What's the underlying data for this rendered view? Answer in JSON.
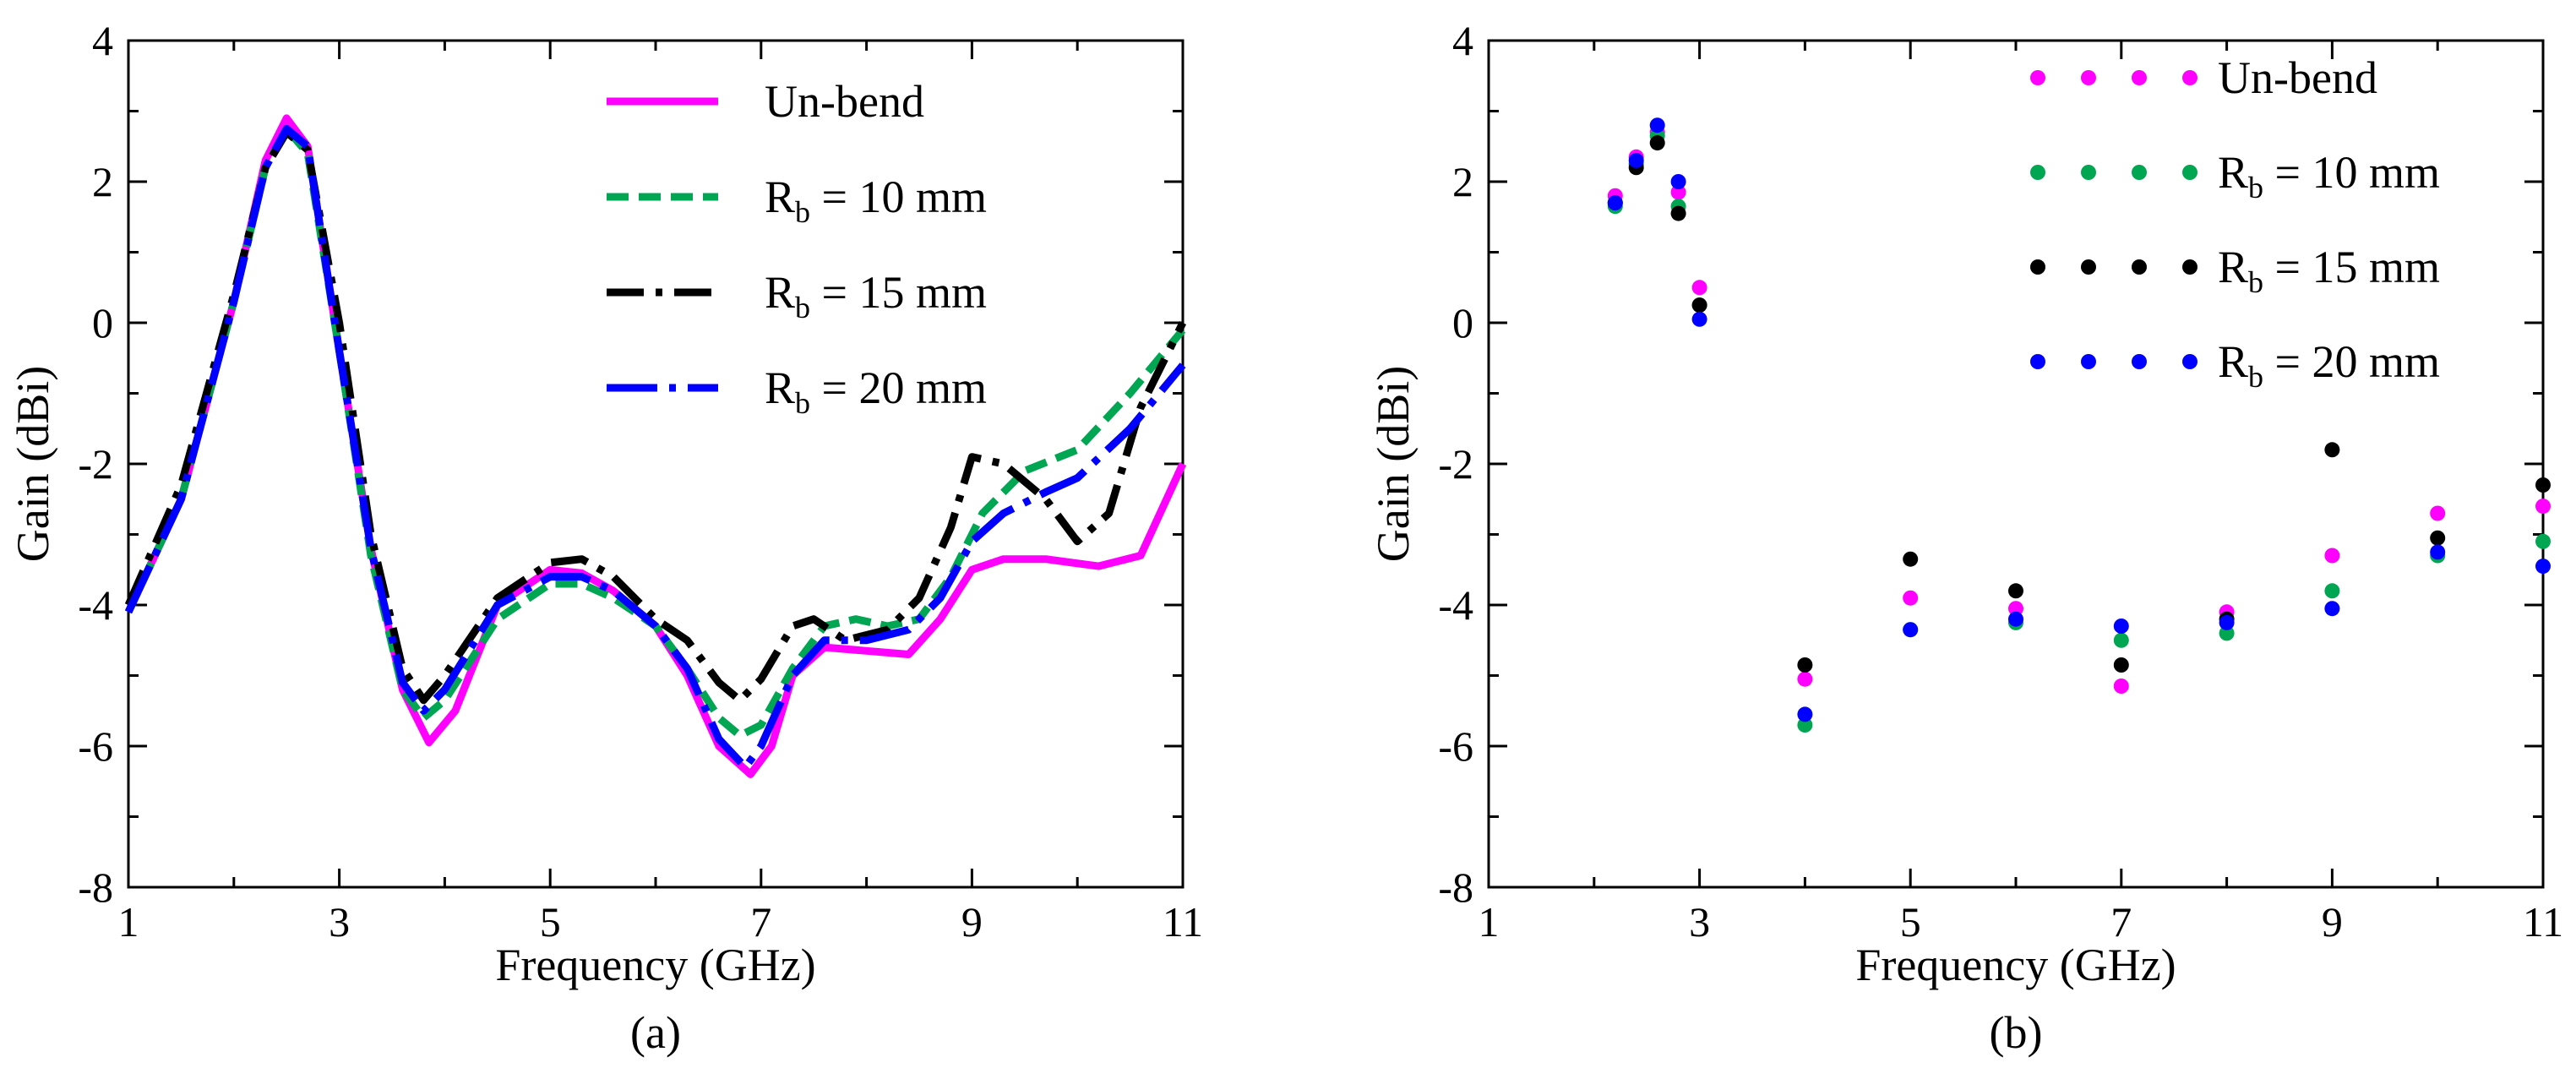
{
  "chart_data": [
    {
      "type": "line",
      "panel_label": "(a)",
      "xlabel": "Frequency (GHz)",
      "ylabel": "Gain (dBi)",
      "xlim": [
        1,
        11
      ],
      "ylim": [
        -8,
        4
      ],
      "xticks": [
        1,
        3,
        5,
        7,
        9,
        11
      ],
      "yticks": [
        4,
        2,
        0,
        -2,
        -4,
        -6,
        -8
      ],
      "yticklabels": [
        "4",
        "2",
        "0",
        "-2",
        "-4",
        "-6",
        "-8"
      ],
      "grid": false,
      "legend_position": "top-right",
      "series": [
        {
          "name": "Un-bend",
          "name_main": "Un-bend",
          "name_sub": "",
          "name_rest": "",
          "color": "#ff00ff",
          "dash": "solid",
          "x": [
            1,
            1.5,
            2,
            2.3,
            2.5,
            2.7,
            3,
            3.3,
            3.6,
            3.85,
            4.1,
            4.5,
            5,
            5.3,
            5.6,
            6,
            6.3,
            6.6,
            6.9,
            7.1,
            7.3,
            7.6,
            8,
            8.4,
            8.7,
            9,
            9.3,
            9.7,
            10.2,
            10.6,
            11
          ],
          "y": [
            -4.1,
            -2.5,
            0.3,
            2.3,
            2.9,
            2.5,
            -0.4,
            -3.2,
            -5.2,
            -5.95,
            -5.5,
            -4.0,
            -3.5,
            -3.55,
            -3.8,
            -4.3,
            -5.0,
            -6.0,
            -6.4,
            -6.0,
            -5.0,
            -4.6,
            -4.65,
            -4.7,
            -4.2,
            -3.5,
            -3.35,
            -3.35,
            -3.45,
            -3.3,
            -2.0
          ]
        },
        {
          "name": "R_b = 10 mm",
          "name_main": "R",
          "name_sub": "b",
          "name_rest": " = 10 mm",
          "color": "#00a651",
          "dash": "short",
          "x": [
            1,
            1.5,
            2,
            2.3,
            2.5,
            2.7,
            3,
            3.3,
            3.6,
            3.8,
            4.0,
            4.5,
            5,
            5.3,
            5.6,
            6,
            6.3,
            6.6,
            6.8,
            7.0,
            7.3,
            7.6,
            7.9,
            8.2,
            8.5,
            8.8,
            9.1,
            9.5,
            10.0,
            10.5,
            11
          ],
          "y": [
            -4.1,
            -2.5,
            0.3,
            2.2,
            2.75,
            2.4,
            -0.4,
            -3.3,
            -5.2,
            -5.6,
            -5.35,
            -4.2,
            -3.7,
            -3.7,
            -3.9,
            -4.3,
            -4.9,
            -5.6,
            -5.85,
            -5.7,
            -4.9,
            -4.3,
            -4.2,
            -4.3,
            -4.2,
            -3.6,
            -2.7,
            -2.1,
            -1.8,
            -1.0,
            -0.1
          ]
        },
        {
          "name": "R_b = 15 mm",
          "name_main": "R",
          "name_sub": "b",
          "name_rest": " = 15 mm",
          "color": "#000000",
          "dash": "dashdot",
          "x": [
            1,
            1.5,
            2,
            2.3,
            2.5,
            2.7,
            3,
            3.3,
            3.6,
            3.8,
            4.0,
            4.5,
            5,
            5.3,
            5.6,
            6,
            6.3,
            6.6,
            6.8,
            7.0,
            7.3,
            7.5,
            7.8,
            8.2,
            8.5,
            8.8,
            9.0,
            9.3,
            9.7,
            10.0,
            10.3,
            10.6,
            11
          ],
          "y": [
            -4.0,
            -2.3,
            0.4,
            2.2,
            2.7,
            2.45,
            0.0,
            -3.0,
            -4.9,
            -5.35,
            -5.0,
            -3.9,
            -3.4,
            -3.35,
            -3.6,
            -4.2,
            -4.5,
            -5.1,
            -5.35,
            -5.05,
            -4.3,
            -4.2,
            -4.5,
            -4.35,
            -3.9,
            -2.9,
            -1.9,
            -2.0,
            -2.5,
            -3.1,
            -2.7,
            -1.2,
            0.0
          ]
        },
        {
          "name": "R_b = 20 mm",
          "name_main": "R",
          "name_sub": "b",
          "name_rest": " = 20 mm",
          "color": "#0000ff",
          "dash": "longdashdot",
          "x": [
            1,
            1.5,
            2,
            2.3,
            2.5,
            2.7,
            3,
            3.3,
            3.6,
            3.8,
            4.0,
            4.5,
            5,
            5.3,
            5.6,
            6,
            6.3,
            6.6,
            6.85,
            7.0,
            7.3,
            7.6,
            8.0,
            8.4,
            8.7,
            9.0,
            9.3,
            9.7,
            10.0,
            10.5,
            11
          ],
          "y": [
            -4.1,
            -2.5,
            0.3,
            2.2,
            2.75,
            2.5,
            -0.4,
            -3.2,
            -5.1,
            -5.5,
            -5.2,
            -4.0,
            -3.6,
            -3.6,
            -3.8,
            -4.3,
            -4.9,
            -5.9,
            -6.3,
            -6.0,
            -5.0,
            -4.5,
            -4.5,
            -4.35,
            -3.9,
            -3.1,
            -2.7,
            -2.4,
            -2.2,
            -1.5,
            -0.6
          ]
        }
      ]
    },
    {
      "type": "scatter",
      "panel_label": "(b)",
      "xlabel": "Frequency (GHz)",
      "ylabel": "Gain (dBi)",
      "xlim": [
        1,
        11
      ],
      "ylim": [
        -8,
        4
      ],
      "xticks": [
        1,
        3,
        5,
        7,
        9,
        11
      ],
      "yticks": [
        4,
        2,
        0,
        -2,
        -4,
        -6,
        -8
      ],
      "yticklabels": [
        "4",
        "2",
        "0",
        "-2",
        "-4",
        "-6",
        "-8"
      ],
      "grid": false,
      "legend_position": "top-right",
      "x": [
        2.2,
        2.4,
        2.6,
        2.8,
        3,
        4,
        5,
        6,
        7,
        8,
        9,
        10,
        11
      ],
      "series": [
        {
          "name": "Un-bend",
          "name_main": "Un-bend",
          "name_sub": "",
          "name_rest": "",
          "color": "#ff00ff",
          "values": [
            1.8,
            2.35,
            2.7,
            1.85,
            0.5,
            -5.05,
            -3.9,
            -4.05,
            -5.15,
            -4.1,
            -3.3,
            -2.7,
            -2.6
          ]
        },
        {
          "name": "R_b = 10 mm",
          "name_main": "R",
          "name_sub": "b",
          "name_rest": " = 10 mm",
          "color": "#00a651",
          "values": [
            1.65,
            2.25,
            2.65,
            1.65,
            0.25,
            -5.7,
            -4.35,
            -4.25,
            -4.5,
            -4.4,
            -3.8,
            -3.3,
            -3.1
          ]
        },
        {
          "name": "R_b = 15 mm",
          "name_main": "R",
          "name_sub": "b",
          "name_rest": " = 15 mm",
          "color": "#000000",
          "values": [
            1.7,
            2.2,
            2.55,
            1.55,
            0.25,
            -4.85,
            -3.35,
            -3.8,
            -4.85,
            -4.2,
            -1.8,
            -3.05,
            -2.3
          ]
        },
        {
          "name": "R_b = 20 mm",
          "name_main": "R",
          "name_sub": "b",
          "name_rest": " = 20 mm",
          "color": "#0000ff",
          "values": [
            1.7,
            2.3,
            2.8,
            2.0,
            0.05,
            -5.55,
            -4.35,
            -4.2,
            -4.3,
            -4.25,
            -4.05,
            -3.25,
            -3.45
          ]
        }
      ]
    }
  ]
}
